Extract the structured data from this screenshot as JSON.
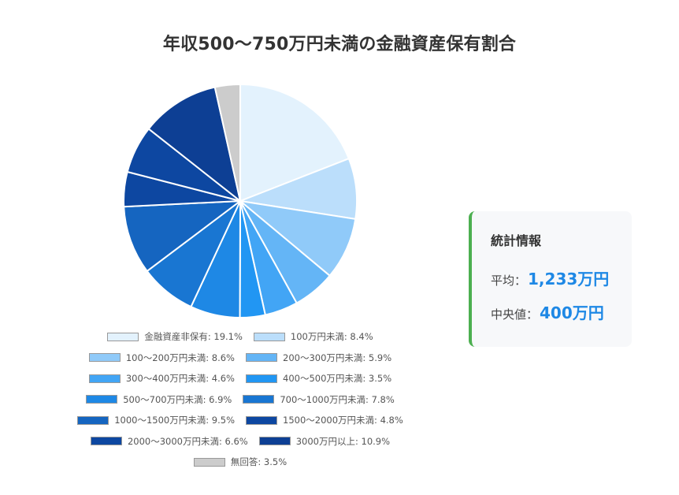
{
  "chart_data": {
    "type": "pie",
    "title": "年収500〜750万円未満の金融資産保有割合",
    "start_angle": "12 o'clock, clockwise",
    "legend_position": "bottom",
    "slices": [
      {
        "label": "金融資産非保有",
        "value": 19.1,
        "color": "#E3F2FD"
      },
      {
        "label": "100万円未満",
        "value": 8.4,
        "color": "#BBDEFB"
      },
      {
        "label": "100〜200万円未満",
        "value": 8.6,
        "color": "#90CAF9"
      },
      {
        "label": "200〜300万円未満",
        "value": 5.9,
        "color": "#64B5F6"
      },
      {
        "label": "300〜400万円未満",
        "value": 4.6,
        "color": "#42A5F5"
      },
      {
        "label": "400〜500万円未満",
        "value": 3.5,
        "color": "#2196F3"
      },
      {
        "label": "500〜700万円未満",
        "value": 6.9,
        "color": "#1E88E5"
      },
      {
        "label": "700〜1000万円未満",
        "value": 7.8,
        "color": "#1976D2"
      },
      {
        "label": "1000〜1500万円未満",
        "value": 9.5,
        "color": "#1565C0"
      },
      {
        "label": "1500〜2000万円未満",
        "value": 4.8,
        "color": "#0D47A1"
      },
      {
        "label": "2000〜3000万円未満",
        "value": 6.6,
        "color": "#0D47A1"
      },
      {
        "label": "3000万円以上",
        "value": 10.9,
        "color": "#0D3F94"
      },
      {
        "label": "無回答",
        "value": 3.5,
        "color": "#CCCCCC"
      }
    ],
    "legend_entries": [
      "金融資産非保有: 19.1%",
      "100万円未満: 8.4%",
      "100〜200万円未満: 8.6%",
      "200〜300万円未満: 5.9%",
      "300〜400万円未満: 4.6%",
      "400〜500万円未満: 3.5%",
      "500〜700万円未満: 6.9%",
      "700〜1000万円未満: 7.8%",
      "1000〜1500万円未満: 9.5%",
      "1500〜2000万円未満: 4.8%",
      "2000〜3000万円未満: 6.6%",
      "3000万円以上: 10.9%",
      "無回答: 3.5%"
    ]
  },
  "title": "年収500〜750万円未満の金融資産保有割合",
  "stats": {
    "heading": "統計情報",
    "average_label": "平均：",
    "average_value": "1,233万円",
    "median_label": "中央値：",
    "median_value": "400万円",
    "accent_color": "#4CAF50",
    "value_color": "#1E88E5"
  }
}
